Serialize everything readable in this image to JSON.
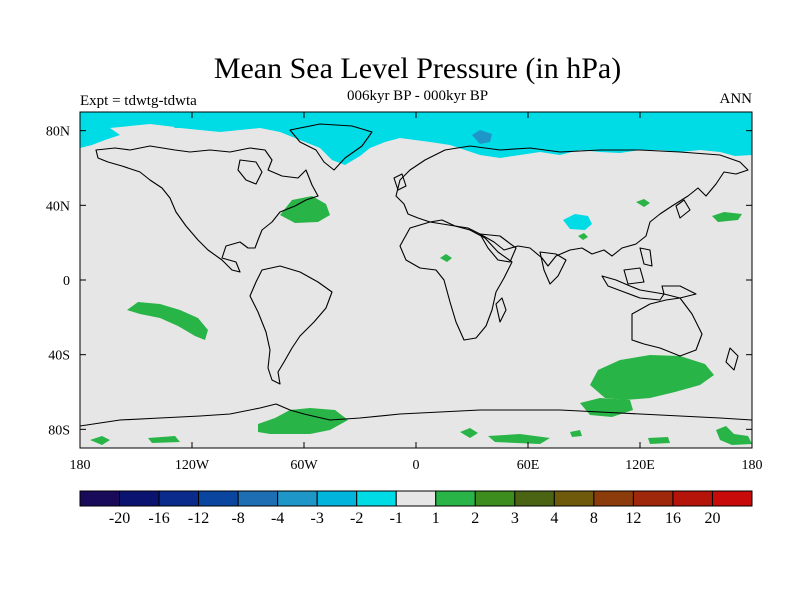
{
  "title": "Mean Sea Level Pressure (in hPa)",
  "subtitle": "006kyr BP - 000kyr BP",
  "left_label": "Expt = tdwtg-tdwta",
  "right_label": "ANN",
  "map": {
    "projection": "cylindrical-equidistant",
    "lon_range": [
      -180,
      180
    ],
    "lat_range": [
      -90,
      90
    ],
    "x_ticks": [
      {
        "lon": -180,
        "label": "180"
      },
      {
        "lon": -120,
        "label": "120W"
      },
      {
        "lon": -60,
        "label": "60W"
      },
      {
        "lon": 0,
        "label": "0"
      },
      {
        "lon": 60,
        "label": "60E"
      },
      {
        "lon": 120,
        "label": "120E"
      },
      {
        "lon": 180,
        "label": "180"
      }
    ],
    "y_ticks": [
      {
        "lat": 80,
        "label": "80N"
      },
      {
        "lat": 40,
        "label": "40N"
      },
      {
        "lat": 0,
        "label": "0"
      },
      {
        "lat": -40,
        "label": "40S"
      },
      {
        "lat": -80,
        "label": "80S"
      }
    ],
    "background_color": "#e6e6e6"
  },
  "colorbar": {
    "colors": [
      "#1a0a5a",
      "#0a1470",
      "#0a2a8c",
      "#0a46a0",
      "#1e6eb4",
      "#1e96c8",
      "#00b4dc",
      "#00dce6",
      "#e6e6e6",
      "#28b446",
      "#3c8c1e",
      "#4b6414",
      "#6e5a0a",
      "#8c3c0a",
      "#a0280a",
      "#b4140a",
      "#c80a0a"
    ],
    "labels": [
      "-20",
      "-16",
      "-12",
      "-8",
      "-4",
      "-3",
      "-2",
      "-1",
      "1",
      "2",
      "3",
      "4",
      "8",
      "12",
      "16",
      "20"
    ]
  }
}
